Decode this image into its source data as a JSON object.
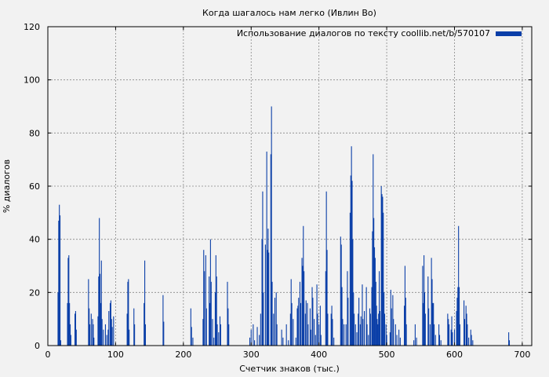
{
  "chart_data": {
    "type": "bar",
    "title": "Когда шагалось нам легко (Ивлин Во)",
    "xlabel": "Счетчик знаков (тыс.)",
    "ylabel": "% диалогов",
    "xlim": [
      0,
      714
    ],
    "ylim": [
      0,
      120
    ],
    "xticks": [
      0,
      100,
      200,
      300,
      400,
      500,
      600,
      700
    ],
    "yticks": [
      0,
      20,
      40,
      60,
      80,
      100,
      120
    ],
    "grid": true,
    "legend_position": "top-right",
    "bar_color": "#0b3fa8",
    "series": [
      {
        "name": "Использование диалогов по тексту coollib.net/b/570107",
        "points": [
          [
            15,
            20
          ],
          [
            16,
            47
          ],
          [
            17,
            53
          ],
          [
            18,
            49
          ],
          [
            19,
            2
          ],
          [
            29,
            16
          ],
          [
            30,
            33
          ],
          [
            31,
            34
          ],
          [
            32,
            16
          ],
          [
            33,
            8
          ],
          [
            34,
            4
          ],
          [
            40,
            12
          ],
          [
            41,
            13
          ],
          [
            42,
            6
          ],
          [
            60,
            25
          ],
          [
            61,
            14
          ],
          [
            62,
            8
          ],
          [
            64,
            12
          ],
          [
            66,
            10
          ],
          [
            67,
            8
          ],
          [
            68,
            3
          ],
          [
            74,
            11
          ],
          [
            75,
            26
          ],
          [
            76,
            48
          ],
          [
            77,
            27
          ],
          [
            78,
            16
          ],
          [
            79,
            32
          ],
          [
            80,
            10
          ],
          [
            82,
            6
          ],
          [
            85,
            8
          ],
          [
            87,
            4
          ],
          [
            89,
            6
          ],
          [
            90,
            13
          ],
          [
            92,
            16
          ],
          [
            93,
            17
          ],
          [
            94,
            10
          ],
          [
            95,
            7
          ],
          [
            97,
            11
          ],
          [
            117,
            12
          ],
          [
            118,
            24
          ],
          [
            119,
            25
          ],
          [
            120,
            6
          ],
          [
            127,
            14
          ],
          [
            128,
            8
          ],
          [
            142,
            16
          ],
          [
            143,
            32
          ],
          [
            144,
            8
          ],
          [
            170,
            19
          ],
          [
            171,
            9
          ],
          [
            211,
            14
          ],
          [
            212,
            7
          ],
          [
            214,
            3
          ],
          [
            229,
            10
          ],
          [
            230,
            36
          ],
          [
            231,
            28
          ],
          [
            233,
            34
          ],
          [
            234,
            14
          ],
          [
            238,
            26
          ],
          [
            239,
            16
          ],
          [
            240,
            40
          ],
          [
            241,
            24
          ],
          [
            243,
            10
          ],
          [
            245,
            3
          ],
          [
            247,
            20
          ],
          [
            248,
            34
          ],
          [
            249,
            26
          ],
          [
            250,
            8
          ],
          [
            252,
            5
          ],
          [
            254,
            11
          ],
          [
            255,
            8
          ],
          [
            265,
            24
          ],
          [
            266,
            14
          ],
          [
            267,
            8
          ],
          [
            298,
            3
          ],
          [
            300,
            6
          ],
          [
            303,
            8
          ],
          [
            305,
            2
          ],
          [
            309,
            7
          ],
          [
            312,
            4
          ],
          [
            314,
            12
          ],
          [
            316,
            40
          ],
          [
            317,
            58
          ],
          [
            318,
            20
          ],
          [
            321,
            38
          ],
          [
            323,
            73
          ],
          [
            324,
            36
          ],
          [
            325,
            44
          ],
          [
            326,
            35
          ],
          [
            329,
            72
          ],
          [
            330,
            90
          ],
          [
            331,
            24
          ],
          [
            333,
            12
          ],
          [
            335,
            18
          ],
          [
            337,
            20
          ],
          [
            338,
            8
          ],
          [
            345,
            6
          ],
          [
            347,
            3
          ],
          [
            352,
            8
          ],
          [
            355,
            2
          ],
          [
            358,
            12
          ],
          [
            359,
            25
          ],
          [
            360,
            16
          ],
          [
            362,
            10
          ],
          [
            366,
            3
          ],
          [
            368,
            14
          ],
          [
            369,
            15
          ],
          [
            370,
            18
          ],
          [
            372,
            24
          ],
          [
            373,
            16
          ],
          [
            375,
            33
          ],
          [
            376,
            30
          ],
          [
            377,
            45
          ],
          [
            378,
            28
          ],
          [
            380,
            12
          ],
          [
            381,
            17
          ],
          [
            383,
            16
          ],
          [
            384,
            8
          ],
          [
            387,
            14
          ],
          [
            388,
            6
          ],
          [
            390,
            22
          ],
          [
            391,
            18
          ],
          [
            393,
            10
          ],
          [
            395,
            4
          ],
          [
            397,
            23
          ],
          [
            398,
            12
          ],
          [
            400,
            8
          ],
          [
            402,
            15
          ],
          [
            403,
            4
          ],
          [
            410,
            28
          ],
          [
            411,
            58
          ],
          [
            412,
            36
          ],
          [
            413,
            12
          ],
          [
            418,
            12
          ],
          [
            419,
            15
          ],
          [
            420,
            10
          ],
          [
            422,
            3
          ],
          [
            432,
            41
          ],
          [
            433,
            38
          ],
          [
            434,
            22
          ],
          [
            435,
            10
          ],
          [
            437,
            8
          ],
          [
            440,
            8
          ],
          [
            442,
            28
          ],
          [
            443,
            18
          ],
          [
            446,
            50
          ],
          [
            447,
            64
          ],
          [
            448,
            75
          ],
          [
            449,
            62
          ],
          [
            450,
            40
          ],
          [
            451,
            20
          ],
          [
            452,
            12
          ],
          [
            454,
            8
          ],
          [
            456,
            5
          ],
          [
            458,
            12
          ],
          [
            459,
            18
          ],
          [
            461,
            8
          ],
          [
            462,
            11
          ],
          [
            464,
            23
          ],
          [
            465,
            10
          ],
          [
            467,
            13
          ],
          [
            470,
            22
          ],
          [
            471,
            8
          ],
          [
            473,
            4
          ],
          [
            475,
            14
          ],
          [
            476,
            12
          ],
          [
            478,
            22
          ],
          [
            479,
            43
          ],
          [
            480,
            72
          ],
          [
            481,
            48
          ],
          [
            482,
            37
          ],
          [
            483,
            33
          ],
          [
            484,
            24
          ],
          [
            485,
            15
          ],
          [
            486,
            10
          ],
          [
            487,
            8
          ],
          [
            488,
            12
          ],
          [
            489,
            28
          ],
          [
            490,
            13
          ],
          [
            492,
            60
          ],
          [
            493,
            57
          ],
          [
            494,
            56
          ],
          [
            495,
            50
          ],
          [
            496,
            20
          ],
          [
            497,
            12
          ],
          [
            499,
            8
          ],
          [
            500,
            4
          ],
          [
            505,
            5
          ],
          [
            506,
            21
          ],
          [
            507,
            14
          ],
          [
            509,
            19
          ],
          [
            510,
            10
          ],
          [
            513,
            8
          ],
          [
            515,
            4
          ],
          [
            518,
            6
          ],
          [
            520,
            3
          ],
          [
            526,
            15
          ],
          [
            527,
            30
          ],
          [
            528,
            18
          ],
          [
            529,
            8
          ],
          [
            540,
            2
          ],
          [
            542,
            8
          ],
          [
            544,
            3
          ],
          [
            553,
            30
          ],
          [
            554,
            16
          ],
          [
            555,
            34
          ],
          [
            556,
            20
          ],
          [
            557,
            12
          ],
          [
            561,
            26
          ],
          [
            562,
            14
          ],
          [
            564,
            8
          ],
          [
            566,
            33
          ],
          [
            567,
            25
          ],
          [
            568,
            16
          ],
          [
            569,
            16
          ],
          [
            570,
            8
          ],
          [
            572,
            4
          ],
          [
            577,
            8
          ],
          [
            578,
            4
          ],
          [
            580,
            2
          ],
          [
            590,
            12
          ],
          [
            591,
            10
          ],
          [
            592,
            8
          ],
          [
            595,
            6
          ],
          [
            596,
            11
          ],
          [
            597,
            5
          ],
          [
            600,
            6
          ],
          [
            603,
            13
          ],
          [
            604,
            18
          ],
          [
            605,
            22
          ],
          [
            606,
            45
          ],
          [
            607,
            22
          ],
          [
            608,
            8
          ],
          [
            614,
            17
          ],
          [
            615,
            10
          ],
          [
            617,
            15
          ],
          [
            618,
            12
          ],
          [
            619,
            8
          ],
          [
            621,
            3
          ],
          [
            624,
            6
          ],
          [
            625,
            4
          ],
          [
            627,
            2
          ],
          [
            680,
            5
          ],
          [
            681,
            2
          ]
        ]
      }
    ]
  }
}
